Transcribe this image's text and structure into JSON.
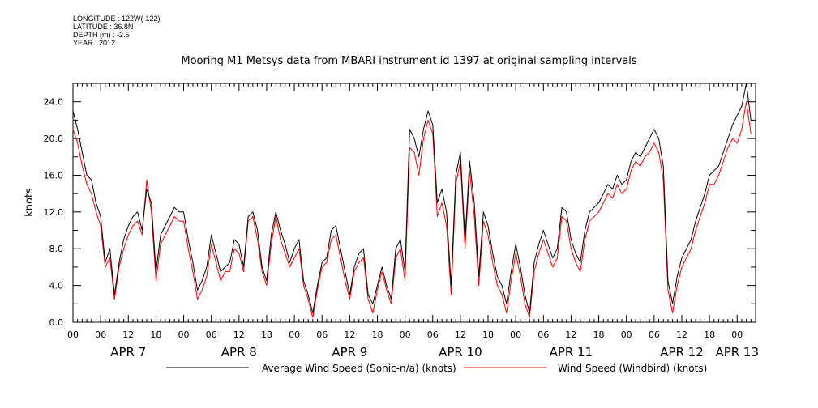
{
  "metadata": {
    "longitude": "LONGITUDE : 122W(-122)",
    "latitude": "LATITUDE : 36.8N",
    "depth": "DEPTH (m) : -2.5",
    "year": "YEAR : 2012"
  },
  "chart_data": {
    "type": "line",
    "title": "Mooring M1 Metsys data from MBARI instrument id 1397 at original sampling intervals",
    "ylabel": "knots",
    "xlabel": "",
    "ylim": [
      0,
      26
    ],
    "xlim_hours": [
      0,
      148
    ],
    "y_ticks": [
      "0.0",
      "4.0",
      "8.0",
      "12.0",
      "16.0",
      "20.0",
      "24.0"
    ],
    "x_hour_ticks": [
      "00",
      "06",
      "12",
      "18",
      "00",
      "06",
      "12",
      "18",
      "00",
      "06",
      "12",
      "18",
      "00",
      "06",
      "12",
      "18",
      "00",
      "06",
      "12",
      "18",
      "00",
      "06",
      "12",
      "18",
      "00"
    ],
    "day_labels": [
      "APR  7",
      "APR  8",
      "APR  9",
      "APR 10",
      "APR 11",
      "APR 12",
      "APR 13"
    ],
    "grid": false,
    "legend": "bottom",
    "series": [
      {
        "name": "Average Wind Speed (Sonic-n/a) (knots)",
        "color": "#000000",
        "points": [
          [
            0,
            23.0
          ],
          [
            1,
            21.0
          ],
          [
            2,
            18.5
          ],
          [
            3,
            16.0
          ],
          [
            4,
            15.5
          ],
          [
            5,
            13.0
          ],
          [
            6,
            11.5
          ],
          [
            7,
            6.5
          ],
          [
            8,
            8.0
          ],
          [
            9,
            3.0
          ],
          [
            10,
            6.5
          ],
          [
            11,
            9.0
          ],
          [
            12,
            10.5
          ],
          [
            13,
            11.5
          ],
          [
            14,
            12.0
          ],
          [
            15,
            10.0
          ],
          [
            16,
            14.5
          ],
          [
            17,
            13.0
          ],
          [
            18,
            5.5
          ],
          [
            19,
            9.5
          ],
          [
            20,
            10.5
          ],
          [
            21,
            11.5
          ],
          [
            22,
            12.5
          ],
          [
            23,
            12.0
          ],
          [
            24,
            12.0
          ],
          [
            25,
            9.0
          ],
          [
            26,
            6.5
          ],
          [
            27,
            3.5
          ],
          [
            28,
            4.5
          ],
          [
            29,
            6.0
          ],
          [
            30,
            9.5
          ],
          [
            31,
            7.5
          ],
          [
            32,
            5.5
          ],
          [
            33,
            6.0
          ],
          [
            34,
            6.5
          ],
          [
            35,
            9.0
          ],
          [
            36,
            8.5
          ],
          [
            37,
            6.0
          ],
          [
            38,
            11.5
          ],
          [
            39,
            12.0
          ],
          [
            40,
            10.0
          ],
          [
            41,
            6.0
          ],
          [
            42,
            4.5
          ],
          [
            43,
            9.5
          ],
          [
            44,
            12.0
          ],
          [
            45,
            10.0
          ],
          [
            46,
            8.5
          ],
          [
            47,
            6.5
          ],
          [
            48,
            8.0
          ],
          [
            49,
            9.0
          ],
          [
            50,
            4.5
          ],
          [
            51,
            3.0
          ],
          [
            52,
            1.0
          ],
          [
            53,
            4.0
          ],
          [
            54,
            6.5
          ],
          [
            55,
            7.0
          ],
          [
            56,
            10.0
          ],
          [
            57,
            10.5
          ],
          [
            58,
            8.0
          ],
          [
            59,
            5.5
          ],
          [
            60,
            3.0
          ],
          [
            61,
            6.0
          ],
          [
            62,
            7.5
          ],
          [
            63,
            8.0
          ],
          [
            64,
            3.0
          ],
          [
            65,
            2.0
          ],
          [
            66,
            4.0
          ],
          [
            67,
            6.0
          ],
          [
            68,
            4.0
          ],
          [
            69,
            2.5
          ],
          [
            70,
            8.0
          ],
          [
            71,
            9.0
          ],
          [
            72,
            5.5
          ],
          [
            73,
            21.0
          ],
          [
            74,
            20.0
          ],
          [
            75,
            18.0
          ],
          [
            76,
            21.0
          ],
          [
            77,
            23.0
          ],
          [
            78,
            21.5
          ],
          [
            79,
            13.0
          ],
          [
            80,
            14.5
          ],
          [
            81,
            12.0
          ],
          [
            82,
            4.0
          ],
          [
            83,
            16.0
          ],
          [
            84,
            18.5
          ],
          [
            85,
            9.0
          ],
          [
            86,
            17.5
          ],
          [
            87,
            13.0
          ],
          [
            88,
            5.0
          ],
          [
            89,
            12.0
          ],
          [
            90,
            10.5
          ],
          [
            91,
            7.5
          ],
          [
            92,
            5.0
          ],
          [
            93,
            4.0
          ],
          [
            94,
            2.0
          ],
          [
            95,
            5.5
          ],
          [
            96,
            8.5
          ],
          [
            97,
            6.0
          ],
          [
            98,
            3.0
          ],
          [
            99,
            1.0
          ],
          [
            100,
            6.5
          ],
          [
            101,
            8.5
          ],
          [
            102,
            10.0
          ],
          [
            103,
            8.5
          ],
          [
            104,
            7.0
          ],
          [
            105,
            8.0
          ],
          [
            106,
            12.5
          ],
          [
            107,
            12.0
          ],
          [
            108,
            9.0
          ],
          [
            109,
            7.5
          ],
          [
            110,
            6.5
          ],
          [
            111,
            10.0
          ],
          [
            112,
            12.0
          ],
          [
            113,
            12.5
          ],
          [
            114,
            13.0
          ],
          [
            115,
            14.0
          ],
          [
            116,
            15.0
          ],
          [
            117,
            14.5
          ],
          [
            118,
            16.0
          ],
          [
            119,
            15.0
          ],
          [
            120,
            15.5
          ],
          [
            121,
            17.5
          ],
          [
            122,
            18.5
          ],
          [
            123,
            18.0
          ],
          [
            124,
            19.0
          ],
          [
            125,
            20.0
          ],
          [
            126,
            21.0
          ],
          [
            127,
            20.0
          ],
          [
            128,
            17.0
          ],
          [
            129,
            4.5
          ],
          [
            130,
            2.0
          ],
          [
            131,
            5.0
          ],
          [
            132,
            7.0
          ],
          [
            133,
            8.0
          ],
          [
            134,
            9.0
          ],
          [
            135,
            11.0
          ],
          [
            136,
            12.5
          ],
          [
            137,
            14.0
          ],
          [
            138,
            16.0
          ],
          [
            139,
            16.5
          ],
          [
            140,
            17.0
          ],
          [
            141,
            18.5
          ],
          [
            142,
            20.0
          ],
          [
            143,
            21.5
          ],
          [
            144,
            22.5
          ],
          [
            145,
            23.5
          ],
          [
            146,
            26.0
          ],
          [
            147,
            22.0
          ]
        ]
      },
      {
        "name": "Wind Speed (Windbird) (knots)",
        "color": "#ff0000",
        "points": [
          [
            0,
            21.0
          ],
          [
            1,
            19.5
          ],
          [
            2,
            17.0
          ],
          [
            3,
            15.0
          ],
          [
            4,
            14.0
          ],
          [
            5,
            12.0
          ],
          [
            6,
            10.5
          ],
          [
            7,
            6.0
          ],
          [
            8,
            7.0
          ],
          [
            9,
            2.5
          ],
          [
            10,
            6.0
          ],
          [
            11,
            8.0
          ],
          [
            12,
            9.5
          ],
          [
            13,
            10.5
          ],
          [
            14,
            11.0
          ],
          [
            15,
            9.5
          ],
          [
            16,
            15.5
          ],
          [
            17,
            12.0
          ],
          [
            18,
            4.5
          ],
          [
            19,
            8.5
          ],
          [
            20,
            9.5
          ],
          [
            21,
            10.5
          ],
          [
            22,
            11.5
          ],
          [
            23,
            11.0
          ],
          [
            24,
            11.0
          ],
          [
            25,
            8.0
          ],
          [
            26,
            5.5
          ],
          [
            27,
            2.5
          ],
          [
            28,
            3.5
          ],
          [
            29,
            5.0
          ],
          [
            30,
            8.5
          ],
          [
            31,
            6.5
          ],
          [
            32,
            4.5
          ],
          [
            33,
            5.5
          ],
          [
            34,
            5.5
          ],
          [
            35,
            8.0
          ],
          [
            36,
            7.5
          ],
          [
            37,
            5.5
          ],
          [
            38,
            11.0
          ],
          [
            39,
            11.5
          ],
          [
            40,
            9.0
          ],
          [
            41,
            5.5
          ],
          [
            42,
            4.0
          ],
          [
            43,
            8.5
          ],
          [
            44,
            11.5
          ],
          [
            45,
            9.0
          ],
          [
            46,
            7.5
          ],
          [
            47,
            6.0
          ],
          [
            48,
            7.0
          ],
          [
            49,
            8.0
          ],
          [
            50,
            4.0
          ],
          [
            51,
            2.5
          ],
          [
            52,
            0.5
          ],
          [
            53,
            3.5
          ],
          [
            54,
            6.0
          ],
          [
            55,
            6.5
          ],
          [
            56,
            9.0
          ],
          [
            57,
            9.5
          ],
          [
            58,
            7.0
          ],
          [
            59,
            4.5
          ],
          [
            60,
            2.5
          ],
          [
            61,
            5.5
          ],
          [
            62,
            6.5
          ],
          [
            63,
            7.0
          ],
          [
            64,
            2.5
          ],
          [
            65,
            1.0
          ],
          [
            66,
            3.5
          ],
          [
            67,
            5.5
          ],
          [
            68,
            3.5
          ],
          [
            69,
            2.0
          ],
          [
            70,
            7.0
          ],
          [
            71,
            8.0
          ],
          [
            72,
            4.5
          ],
          [
            73,
            19.0
          ],
          [
            74,
            18.5
          ],
          [
            75,
            16.0
          ],
          [
            76,
            20.0
          ],
          [
            77,
            22.0
          ],
          [
            78,
            20.5
          ],
          [
            79,
            11.5
          ],
          [
            80,
            13.0
          ],
          [
            81,
            10.5
          ],
          [
            82,
            3.0
          ],
          [
            83,
            15.0
          ],
          [
            84,
            17.5
          ],
          [
            85,
            8.0
          ],
          [
            86,
            16.5
          ],
          [
            87,
            11.5
          ],
          [
            88,
            4.0
          ],
          [
            89,
            11.0
          ],
          [
            90,
            9.5
          ],
          [
            91,
            6.5
          ],
          [
            92,
            4.0
          ],
          [
            93,
            3.0
          ],
          [
            94,
            1.0
          ],
          [
            95,
            4.5
          ],
          [
            96,
            7.5
          ],
          [
            97,
            5.0
          ],
          [
            98,
            2.0
          ],
          [
            99,
            0.5
          ],
          [
            100,
            5.5
          ],
          [
            101,
            7.5
          ],
          [
            102,
            9.0
          ],
          [
            103,
            7.5
          ],
          [
            104,
            6.0
          ],
          [
            105,
            7.0
          ],
          [
            106,
            11.5
          ],
          [
            107,
            11.0
          ],
          [
            108,
            8.0
          ],
          [
            109,
            6.5
          ],
          [
            110,
            5.5
          ],
          [
            111,
            9.0
          ],
          [
            112,
            11.0
          ],
          [
            113,
            11.5
          ],
          [
            114,
            12.0
          ],
          [
            115,
            13.0
          ],
          [
            116,
            14.0
          ],
          [
            117,
            13.5
          ],
          [
            118,
            15.0
          ],
          [
            119,
            14.0
          ],
          [
            120,
            14.5
          ],
          [
            121,
            16.5
          ],
          [
            122,
            17.5
          ],
          [
            123,
            17.0
          ],
          [
            124,
            18.0
          ],
          [
            125,
            18.5
          ],
          [
            126,
            19.5
          ],
          [
            127,
            18.5
          ],
          [
            128,
            15.5
          ],
          [
            129,
            3.5
          ],
          [
            130,
            1.0
          ],
          [
            131,
            4.0
          ],
          [
            132,
            6.0
          ],
          [
            133,
            7.0
          ],
          [
            134,
            8.0
          ],
          [
            135,
            10.0
          ],
          [
            136,
            11.5
          ],
          [
            137,
            13.0
          ],
          [
            138,
            15.0
          ],
          [
            139,
            15.0
          ],
          [
            140,
            16.0
          ],
          [
            141,
            17.5
          ],
          [
            142,
            19.0
          ],
          [
            143,
            20.0
          ],
          [
            144,
            19.5
          ],
          [
            145,
            21.0
          ],
          [
            146,
            24.0
          ],
          [
            147,
            20.5
          ]
        ]
      }
    ]
  }
}
